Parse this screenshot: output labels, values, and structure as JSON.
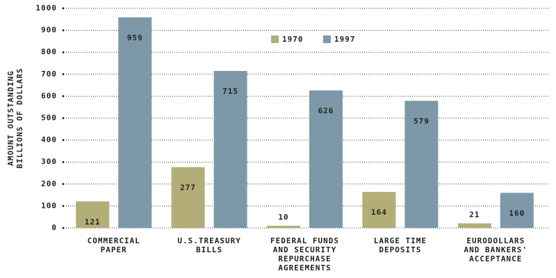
{
  "chart_data": {
    "type": "bar",
    "categories": [
      [
        "COMMERCIAL",
        "PAPER"
      ],
      [
        "U.S.TREASURY",
        "BILLS"
      ],
      [
        "FEDERAL FUNDS",
        "AND SECURITY",
        "REPURCHASE",
        "AGREEMENTS"
      ],
      [
        "LARGE TIME",
        "DEPOSITS"
      ],
      [
        "EURODOLLARS",
        "AND BANKERS'",
        "ACCEPTANCE"
      ]
    ],
    "series": [
      {
        "name": "1970",
        "color": "#b3ae78",
        "values": [
          121,
          277,
          10,
          164,
          21
        ]
      },
      {
        "name": "1997",
        "color": "#7d99a9",
        "values": [
          959,
          715,
          626,
          579,
          160
        ]
      }
    ],
    "ylabel": [
      "AMOUNT OUTSTANDING",
      "BILLIONS OF DOLLARS"
    ],
    "ylim": [
      0,
      1000
    ],
    "yticks": [
      0,
      100,
      200,
      300,
      400,
      500,
      600,
      700,
      800,
      900,
      1000
    ],
    "grid": true
  }
}
